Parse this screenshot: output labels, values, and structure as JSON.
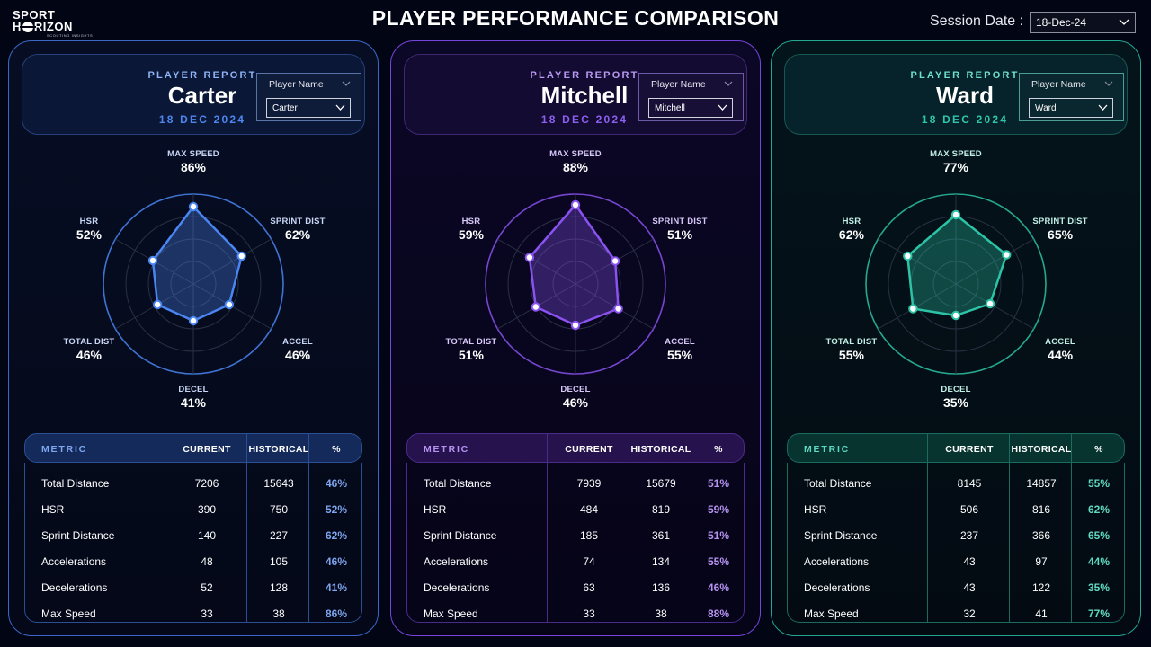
{
  "logo": {
    "line1": "SPORT",
    "line2a": "H",
    "line2b": "RIZON",
    "tagline": "SCOUTING INSIGHTS"
  },
  "title": "PLAYER PERFORMANCE COMPARISON",
  "session": {
    "label": "Session Date :",
    "value": "18-Dec-24"
  },
  "colors": {
    "blue": "#4a86f2",
    "purple": "#8a52f0",
    "teal": "#2cc3a6",
    "background": "#020614"
  },
  "table_headers": {
    "metric": "METRIC",
    "current": "CURRENT",
    "historical": "HISTORICAL",
    "pct": "%"
  },
  "panels": [
    {
      "report_label": "PLAYER REPORT",
      "player": "Carter",
      "date": "18 DEC 2024",
      "slicer_title": "Player Name",
      "slicer_value": "Carter",
      "rows": [
        {
          "metric": "Total Distance",
          "current": "7206",
          "historical": "15643",
          "pct": "46%"
        },
        {
          "metric": "HSR",
          "current": "390",
          "historical": "750",
          "pct": "52%"
        },
        {
          "metric": "Sprint Distance",
          "current": "140",
          "historical": "227",
          "pct": "62%"
        },
        {
          "metric": "Accelerations",
          "current": "48",
          "historical": "105",
          "pct": "46%"
        },
        {
          "metric": "Decelerations",
          "current": "52",
          "historical": "128",
          "pct": "41%"
        },
        {
          "metric": "Max Speed",
          "current": "33",
          "historical": "38",
          "pct": "86%"
        }
      ]
    },
    {
      "report_label": "PLAYER REPORT",
      "player": "Mitchell",
      "date": "18 DEC 2024",
      "slicer_title": "Player Name",
      "slicer_value": "Mitchell",
      "rows": [
        {
          "metric": "Total Distance",
          "current": "7939",
          "historical": "15679",
          "pct": "51%"
        },
        {
          "metric": "HSR",
          "current": "484",
          "historical": "819",
          "pct": "59%"
        },
        {
          "metric": "Sprint Distance",
          "current": "185",
          "historical": "361",
          "pct": "51%"
        },
        {
          "metric": "Accelerations",
          "current": "74",
          "historical": "134",
          "pct": "55%"
        },
        {
          "metric": "Decelerations",
          "current": "63",
          "historical": "136",
          "pct": "46%"
        },
        {
          "metric": "Max Speed",
          "current": "33",
          "historical": "38",
          "pct": "88%"
        }
      ]
    },
    {
      "report_label": "PLAYER REPORT",
      "player": "Ward",
      "date": "18 DEC 2024",
      "slicer_title": "Player Name",
      "slicer_value": "Ward",
      "rows": [
        {
          "metric": "Total Distance",
          "current": "8145",
          "historical": "14857",
          "pct": "55%"
        },
        {
          "metric": "HSR",
          "current": "506",
          "historical": "816",
          "pct": "62%"
        },
        {
          "metric": "Sprint Distance",
          "current": "237",
          "historical": "366",
          "pct": "65%"
        },
        {
          "metric": "Accelerations",
          "current": "43",
          "historical": "97",
          "pct": "44%"
        },
        {
          "metric": "Decelerations",
          "current": "43",
          "historical": "122",
          "pct": "35%"
        },
        {
          "metric": "Max Speed",
          "current": "32",
          "historical": "41",
          "pct": "77%"
        }
      ]
    }
  ],
  "chart_data": [
    {
      "type": "radar",
      "series": [
        {
          "name": "Carter",
          "values": [
            86,
            62,
            46,
            41,
            46,
            52
          ]
        }
      ],
      "categories": [
        "MAX SPEED",
        "SPRINT DIST",
        "ACCEL",
        "DECEL",
        "TOTAL DIST",
        "HSR"
      ],
      "value_labels": [
        "86%",
        "62%",
        "46%",
        "41%",
        "46%",
        "52%"
      ],
      "range": [
        0,
        100
      ],
      "rings": 4,
      "color": "#4a86f2"
    },
    {
      "type": "radar",
      "series": [
        {
          "name": "Mitchell",
          "values": [
            88,
            51,
            55,
            46,
            51,
            59
          ]
        }
      ],
      "categories": [
        "MAX SPEED",
        "SPRINT DIST",
        "ACCEL",
        "DECEL",
        "TOTAL DIST",
        "HSR"
      ],
      "value_labels": [
        "88%",
        "51%",
        "55%",
        "46%",
        "51%",
        "59%"
      ],
      "range": [
        0,
        100
      ],
      "rings": 4,
      "color": "#8a52f0"
    },
    {
      "type": "radar",
      "series": [
        {
          "name": "Ward",
          "values": [
            77,
            65,
            44,
            35,
            55,
            62
          ]
        }
      ],
      "categories": [
        "MAX SPEED",
        "SPRINT DIST",
        "ACCEL",
        "DECEL",
        "TOTAL DIST",
        "HSR"
      ],
      "value_labels": [
        "77%",
        "65%",
        "44%",
        "35%",
        "55%",
        "62%"
      ],
      "range": [
        0,
        100
      ],
      "rings": 4,
      "color": "#2cc3a6"
    }
  ]
}
